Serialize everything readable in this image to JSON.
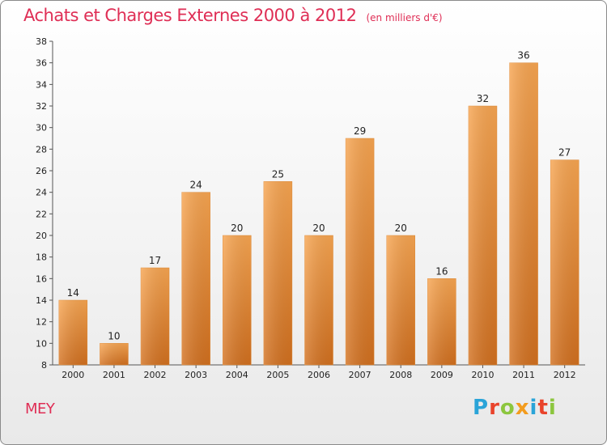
{
  "header": {
    "title": "Achats et Charges Externes 2000 à 2012",
    "unit": "(en milliers d'€)"
  },
  "footer": {
    "commune": "MEY",
    "brand": "Proxiti",
    "brand_colors": [
      "#2aa4d8",
      "#e9432b",
      "#8cc63e",
      "#f39c1e",
      "#2aa4d8",
      "#e9432b",
      "#8cc63e"
    ]
  },
  "colors": {
    "bar_light": "#f7a551",
    "bar_dark": "#d2701f",
    "title": "#df2e55"
  },
  "chart_data": {
    "type": "bar",
    "categories": [
      "2000",
      "2001",
      "2002",
      "2003",
      "2004",
      "2005",
      "2006",
      "2007",
      "2008",
      "2009",
      "2010",
      "2011",
      "2012"
    ],
    "values": [
      14,
      10,
      17,
      24,
      20,
      25,
      20,
      29,
      20,
      16,
      32,
      36,
      27
    ],
    "ylim": [
      8,
      38
    ],
    "yticks": [
      8,
      10,
      12,
      14,
      16,
      18,
      20,
      22,
      24,
      26,
      28,
      30,
      32,
      34,
      36,
      38
    ],
    "grid": false,
    "data_labels": true
  }
}
